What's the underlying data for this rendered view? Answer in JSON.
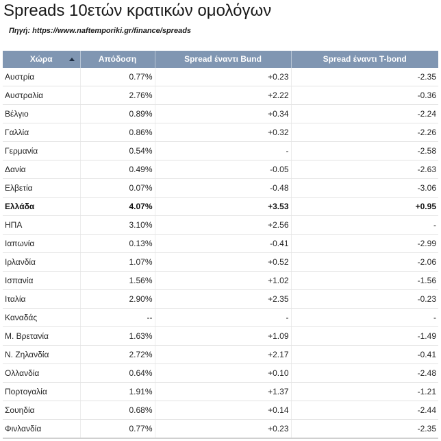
{
  "title": "Spreads 10ετών κρατικών ομολόγων",
  "source": "Πηγή: https://www.naftemporiki.gr/finance/spreads",
  "colors": {
    "header_bg": "#8096b2",
    "header_text": "#ffffff",
    "row_divider": "#e3e3e3"
  },
  "table": {
    "sort_icon": "sort-ascending-icon",
    "headers": {
      "country": "Χώρα",
      "yield": "Απόδοση",
      "bund": "Spread έναντι Bund",
      "tbond": "Spread έναντι T-bond"
    },
    "rows": [
      {
        "country": "Αυστρία",
        "yield": "0.77%",
        "bund": "+0.23",
        "tbond": "-2.35",
        "bold": false
      },
      {
        "country": "Αυστραλία",
        "yield": "2.76%",
        "bund": "+2.22",
        "tbond": "-0.36",
        "bold": false
      },
      {
        "country": "Βέλγιο",
        "yield": "0.89%",
        "bund": "+0.34",
        "tbond": "-2.24",
        "bold": false
      },
      {
        "country": "Γαλλία",
        "yield": "0.86%",
        "bund": "+0.32",
        "tbond": "-2.26",
        "bold": false
      },
      {
        "country": "Γερμανία",
        "yield": "0.54%",
        "bund": "-",
        "tbond": "-2.58",
        "bold": false
      },
      {
        "country": "Δανία",
        "yield": "0.49%",
        "bund": "-0.05",
        "tbond": "-2.63",
        "bold": false
      },
      {
        "country": "Ελβετία",
        "yield": "0.07%",
        "bund": "-0.48",
        "tbond": "-3.06",
        "bold": false
      },
      {
        "country": "Ελλάδα",
        "yield": "4.07%",
        "bund": "+3.53",
        "tbond": "+0.95",
        "bold": true
      },
      {
        "country": "ΗΠΑ",
        "yield": "3.10%",
        "bund": "+2.56",
        "tbond": "-",
        "bold": false
      },
      {
        "country": "Ιαπωνία",
        "yield": "0.13%",
        "bund": "-0.41",
        "tbond": "-2.99",
        "bold": false
      },
      {
        "country": "Ιρλανδία",
        "yield": "1.07%",
        "bund": "+0.52",
        "tbond": "-2.06",
        "bold": false
      },
      {
        "country": "Ισπανία",
        "yield": "1.56%",
        "bund": "+1.02",
        "tbond": "-1.56",
        "bold": false
      },
      {
        "country": "Ιταλία",
        "yield": "2.90%",
        "bund": "+2.35",
        "tbond": "-0.23",
        "bold": false
      },
      {
        "country": "Καναδάς",
        "yield": "--",
        "bund": "-",
        "tbond": "-",
        "bold": false
      },
      {
        "country": "Μ. Βρετανία",
        "yield": "1.63%",
        "bund": "+1.09",
        "tbond": "-1.49",
        "bold": false
      },
      {
        "country": "Ν. Ζηλανδία",
        "yield": "2.72%",
        "bund": "+2.17",
        "tbond": "-0.41",
        "bold": false
      },
      {
        "country": "Ολλανδία",
        "yield": "0.64%",
        "bund": "+0.10",
        "tbond": "-2.48",
        "bold": false
      },
      {
        "country": "Πορτογαλία",
        "yield": "1.91%",
        "bund": "+1.37",
        "tbond": "-1.21",
        "bold": false
      },
      {
        "country": "Σουηδία",
        "yield": "0.68%",
        "bund": "+0.14",
        "tbond": "-2.44",
        "bold": false
      },
      {
        "country": "Φινλανδία",
        "yield": "0.77%",
        "bund": "+0.23",
        "tbond": "-2.35",
        "bold": false
      }
    ]
  }
}
